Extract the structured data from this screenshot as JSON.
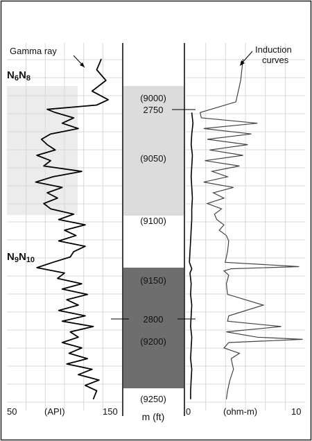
{
  "chart_data": {
    "type": "line",
    "tracks": [
      {
        "name": "gamma-ray-track",
        "curve_label": "Gamma ray",
        "scale_min": "50",
        "scale_unit": "(API)",
        "scale_max": "150",
        "xlim": [
          50,
          150
        ],
        "zone_labels": [
          {
            "main": "N",
            "sub1": "6",
            "mid": "N",
            "sub2": "8",
            "depth_ft": 8985
          },
          {
            "main": "N",
            "sub1": "9",
            "mid": "N",
            "sub2": "10",
            "depth_ft": 9130
          }
        ],
        "series": [
          {
            "depth_ft": [
              8940,
              8950,
              8960,
              8970,
              8978,
              8983,
              8987,
              8990,
              8995,
              9000,
              9005,
              9010,
              9015,
              9020,
              9025,
              9030,
              9035,
              9040,
              9045,
              9050,
              9055,
              9060,
              9065,
              9070,
              9075,
              9080,
              9085,
              9090,
              9095,
              9100,
              9105,
              9110,
              9115,
              9120,
              9125,
              9130,
              9135,
              9140,
              9145,
              9150,
              9155,
              9160,
              9165,
              9170,
              9175,
              9180,
              9185,
              9190,
              9195,
              9200,
              9205,
              9210,
              9215,
              9220,
              9225,
              9230,
              9235,
              9240,
              9245,
              9250,
              9258
            ],
            "values": [
              132,
              128,
              136,
              124,
              138,
              128,
              85,
              92,
              108,
              98,
              112,
              88,
              80,
              85,
              92,
              76,
              88,
              82,
              115,
              90,
              75,
              98,
              85,
              94,
              82,
              88,
              108,
              95,
              118,
              100,
              110,
              95,
              118,
              108,
              105,
              90,
              76,
              100,
              94,
              115,
              98,
              120,
              102,
              112,
              95,
              118,
              98,
              125,
              105,
              112,
              98,
              115,
              104,
              120,
              102,
              124,
              112,
              130,
              118,
              128,
              125
            ]
          }
        ]
      },
      {
        "name": "depth-track",
        "scale_label": "m (ft)",
        "depth_ticks_ft": [
          "(9000)",
          "(9050)",
          "(9100)",
          "(9150)",
          "(9200)",
          "(9250)"
        ],
        "depth_ticks_m": [
          "2750",
          "2800"
        ],
        "shaded_intervals": [
          {
            "top_ft": 8990,
            "base_ft": 9105,
            "tone": "light"
          },
          {
            "top_ft": 9135,
            "base_ft": 9245,
            "tone": "dark"
          }
        ]
      },
      {
        "name": "induction-track",
        "curve_label_line1": "Induction",
        "curve_label_line2": "curves",
        "scale_min": "0",
        "scale_unit": "(ohm-m)",
        "scale_max": "10",
        "xlim": [
          0,
          10
        ],
        "series": [
          {
            "name": "",
            "depth_ft": [
              8990,
              9000,
              9010,
              9020,
              9030,
              9040,
              9050,
              9060,
              9070,
              9080,
              9090,
              9100,
              9110,
              9120,
              9130,
              9136,
              9140,
              9145,
              9150,
              9160,
              9170,
              9180,
              9190,
              9200,
              9210,
              9220,
              9230,
              9240,
              9250,
              9258
            ],
            "values": [
              0.5,
              0.6,
              0.5,
              0.45,
              0.55,
              0.5,
              0.45,
              0.5,
              0.55,
              0.5,
              0.5,
              0.45,
              0.4,
              0.35,
              0.3,
              0.5,
              0.35,
              0.4,
              0.45,
              0.4,
              0.5,
              0.45,
              0.4,
              0.5,
              0.45,
              0.4,
              0.5,
              0.45,
              0.4,
              0.4
            ]
          },
          {
            "name": "",
            "depth_ft": [
              8940,
              8950,
              8960,
              8970,
              8980,
              8990,
              8995,
              9000,
              9005,
              9010,
              9015,
              9020,
              9025,
              9030,
              9035,
              9040,
              9045,
              9050,
              9055,
              9060,
              9065,
              9070,
              9075,
              9080,
              9085,
              9090,
              9095,
              9100,
              9105,
              9110,
              9120,
              9130,
              9134,
              9136,
              9138,
              9142,
              9150,
              9160,
              9170,
              9180,
              9185,
              9190,
              9195,
              9200,
              9202,
              9205,
              9210,
              9215,
              9220,
              9230,
              9240,
              9250,
              9258
            ],
            "values": [
              4.8,
              4.7,
              4.6,
              4.4,
              4.2,
              1.2,
              1.3,
              6.0,
              1.5,
              5.5,
              1.8,
              5.2,
              2.0,
              4.8,
              1.6,
              4.5,
              2.2,
              3.5,
              1.5,
              4.0,
              2.3,
              3.2,
              1.8,
              3.0,
              2.4,
              2.6,
              3.2,
              2.8,
              3.4,
              3.6,
              3.5,
              3.3,
              9.5,
              3.8,
              3.2,
              3.6,
              3.4,
              3.5,
              6.5,
              3.6,
              3.5,
              8.0,
              3.4,
              6.0,
              9.8,
              3.6,
              3.2,
              4.5,
              3.8,
              4.0,
              3.7,
              3.5,
              3.4
            ]
          }
        ]
      }
    ],
    "ylim_ft": [
      8925,
      9262
    ]
  }
}
